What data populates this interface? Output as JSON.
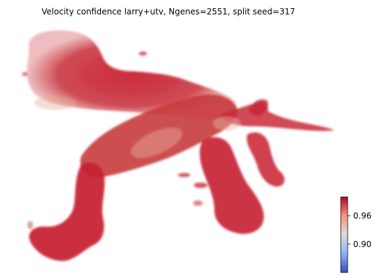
{
  "chart_data": {
    "type": "scatter",
    "title": "Velocity confidence larry+utv, Ngenes=2551, split seed=317",
    "xlabel": "",
    "ylabel": "",
    "axes_visible": false,
    "grid": false,
    "point_color": "#c0172e",
    "colorbar": {
      "colormap": "coolwarm",
      "range": [
        0.84,
        1.0
      ],
      "ticks": [
        0.9,
        0.96
      ],
      "tick_labels": [
        "0.90",
        "0.96"
      ],
      "colors": [
        "#3b4cc0",
        "#8db0fe",
        "#dddcdc",
        "#f4987a",
        "#b40426"
      ]
    }
  }
}
